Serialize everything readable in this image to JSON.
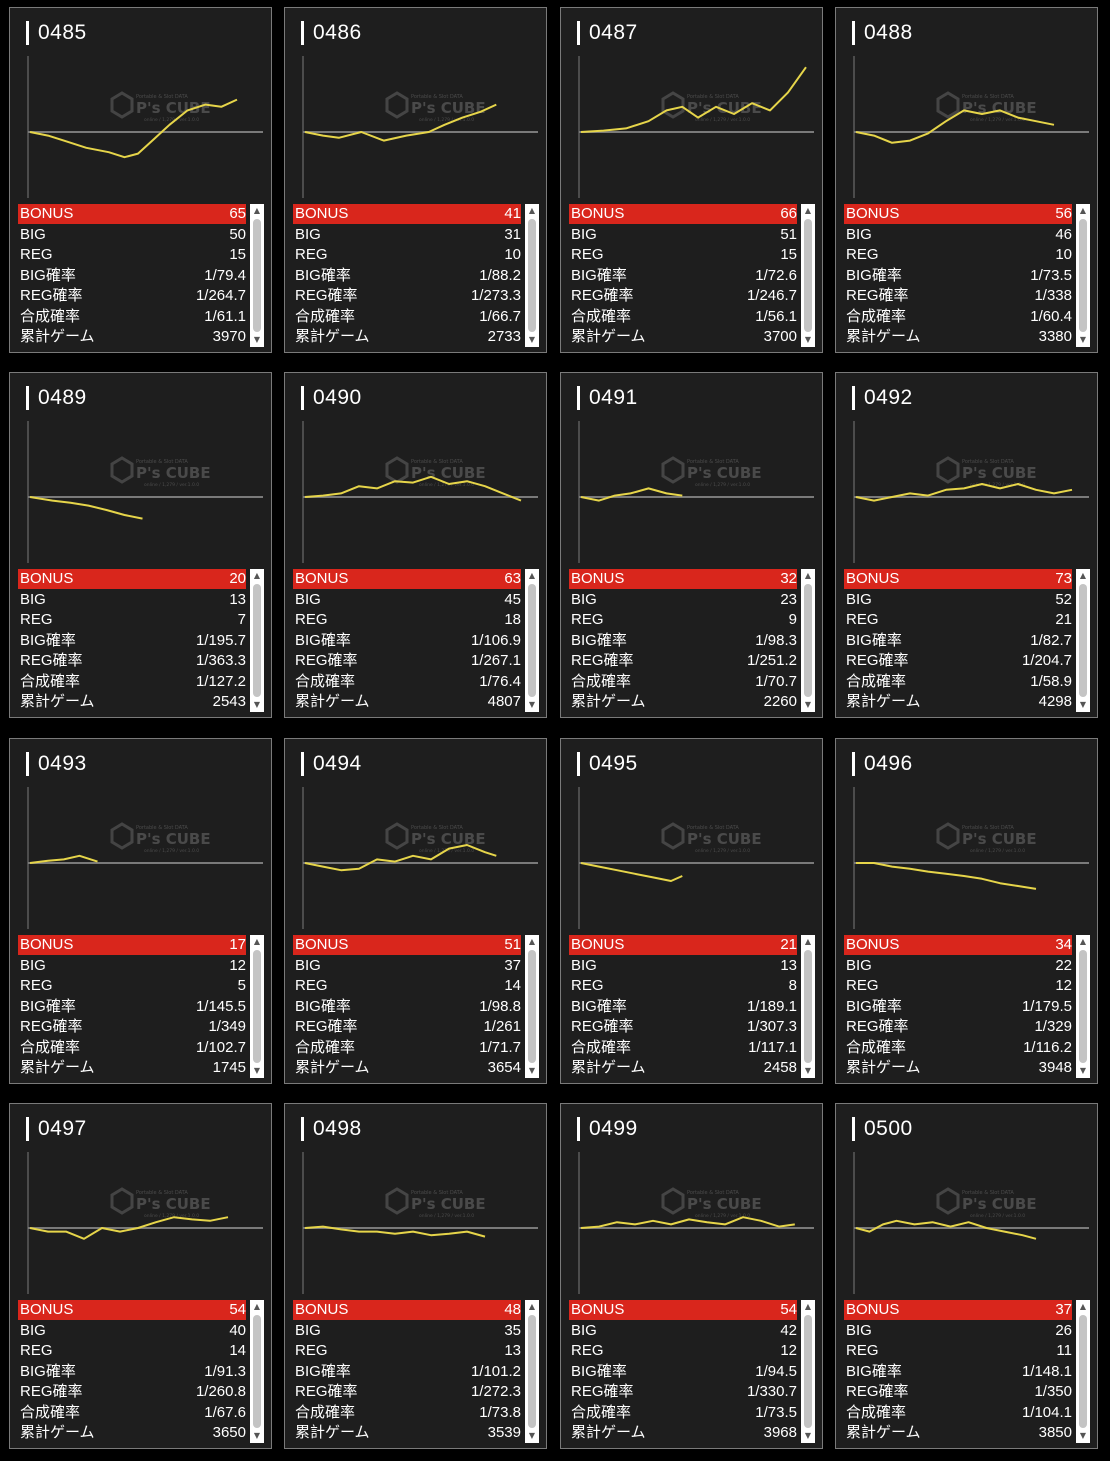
{
  "colors": {
    "bonus_bar": "#d9261c",
    "graph_line": "#e6d54a",
    "card_bg": "#1e1e1e",
    "card_border": "#7a7a7a",
    "baseline": "#7a7a7a"
  },
  "watermark": {
    "line1": "Portable & Slot DATA",
    "line2": "P's CUBE",
    "line3": "online / 1,279 / ver.1.0.0"
  },
  "icons": {
    "scroll_up": "▲",
    "scroll_down": "▼"
  },
  "labels": {
    "bonus": "BONUS",
    "big": "BIG",
    "reg": "REG",
    "big_rate": "BIG確率",
    "reg_rate": "REG確率",
    "total_rate": "合成確率",
    "games": "累計ゲーム"
  },
  "machines": [
    {
      "id": "0485",
      "bonus": "65",
      "big": "50",
      "reg": "15",
      "big_rate": "1/79.4",
      "reg_rate": "1/264.7",
      "total_rate": "1/61.1",
      "games": "3970",
      "graph": [
        [
          0,
          0
        ],
        [
          0.08,
          -0.05
        ],
        [
          0.15,
          -0.12
        ],
        [
          0.25,
          -0.22
        ],
        [
          0.35,
          -0.28
        ],
        [
          0.42,
          -0.35
        ],
        [
          0.48,
          -0.3
        ],
        [
          0.55,
          -0.1
        ],
        [
          0.62,
          0.1
        ],
        [
          0.7,
          0.3
        ],
        [
          0.78,
          0.38
        ],
        [
          0.85,
          0.35
        ],
        [
          0.92,
          0.45
        ]
      ]
    },
    {
      "id": "0486",
      "bonus": "41",
      "big": "31",
      "reg": "10",
      "big_rate": "1/88.2",
      "reg_rate": "1/273.3",
      "total_rate": "1/66.7",
      "games": "2733",
      "graph": [
        [
          0,
          0
        ],
        [
          0.08,
          -0.05
        ],
        [
          0.15,
          -0.08
        ],
        [
          0.25,
          0
        ],
        [
          0.35,
          -0.12
        ],
        [
          0.45,
          -0.05
        ],
        [
          0.55,
          0
        ],
        [
          0.62,
          0.1
        ],
        [
          0.7,
          0.2
        ],
        [
          0.78,
          0.28
        ],
        [
          0.85,
          0.38
        ]
      ]
    },
    {
      "id": "0487",
      "bonus": "66",
      "big": "51",
      "reg": "15",
      "big_rate": "1/72.6",
      "reg_rate": "1/246.7",
      "total_rate": "1/56.1",
      "games": "3700",
      "graph": [
        [
          0,
          0
        ],
        [
          0.1,
          0.02
        ],
        [
          0.2,
          0.05
        ],
        [
          0.3,
          0.15
        ],
        [
          0.38,
          0.3
        ],
        [
          0.45,
          0.35
        ],
        [
          0.52,
          0.2
        ],
        [
          0.6,
          0.35
        ],
        [
          0.68,
          0.25
        ],
        [
          0.76,
          0.4
        ],
        [
          0.84,
          0.3
        ],
        [
          0.92,
          0.55
        ],
        [
          1.0,
          0.9
        ]
      ]
    },
    {
      "id": "0488",
      "bonus": "56",
      "big": "46",
      "reg": "10",
      "big_rate": "1/73.5",
      "reg_rate": "1/338",
      "total_rate": "1/60.4",
      "games": "3380",
      "graph": [
        [
          0,
          0
        ],
        [
          0.08,
          -0.05
        ],
        [
          0.16,
          -0.15
        ],
        [
          0.24,
          -0.12
        ],
        [
          0.32,
          -0.02
        ],
        [
          0.4,
          0.15
        ],
        [
          0.48,
          0.3
        ],
        [
          0.56,
          0.25
        ],
        [
          0.64,
          0.3
        ],
        [
          0.72,
          0.2
        ],
        [
          0.8,
          0.15
        ],
        [
          0.88,
          0.1
        ]
      ]
    },
    {
      "id": "0489",
      "bonus": "20",
      "big": "13",
      "reg": "7",
      "big_rate": "1/195.7",
      "reg_rate": "1/363.3",
      "total_rate": "1/127.2",
      "games": "2543",
      "graph": [
        [
          0,
          0
        ],
        [
          0.1,
          -0.05
        ],
        [
          0.18,
          -0.08
        ],
        [
          0.26,
          -0.12
        ],
        [
          0.34,
          -0.18
        ],
        [
          0.42,
          -0.25
        ],
        [
          0.5,
          -0.3
        ]
      ]
    },
    {
      "id": "0490",
      "bonus": "63",
      "big": "45",
      "reg": "18",
      "big_rate": "1/106.9",
      "reg_rate": "1/267.1",
      "total_rate": "1/76.4",
      "games": "4807",
      "graph": [
        [
          0,
          0
        ],
        [
          0.08,
          0.02
        ],
        [
          0.16,
          0.05
        ],
        [
          0.24,
          0.15
        ],
        [
          0.32,
          0.12
        ],
        [
          0.4,
          0.22
        ],
        [
          0.48,
          0.2
        ],
        [
          0.56,
          0.28
        ],
        [
          0.64,
          0.18
        ],
        [
          0.72,
          0.22
        ],
        [
          0.8,
          0.15
        ],
        [
          0.88,
          0.05
        ],
        [
          0.96,
          -0.05
        ]
      ]
    },
    {
      "id": "0491",
      "bonus": "32",
      "big": "23",
      "reg": "9",
      "big_rate": "1/98.3",
      "reg_rate": "1/251.2",
      "total_rate": "1/70.7",
      "games": "2260",
      "graph": [
        [
          0,
          0
        ],
        [
          0.08,
          -0.05
        ],
        [
          0.15,
          0.02
        ],
        [
          0.22,
          0.05
        ],
        [
          0.3,
          0.12
        ],
        [
          0.38,
          0.05
        ],
        [
          0.45,
          0.02
        ]
      ]
    },
    {
      "id": "0492",
      "bonus": "73",
      "big": "52",
      "reg": "21",
      "big_rate": "1/82.7",
      "reg_rate": "1/204.7",
      "total_rate": "1/58.9",
      "games": "4298",
      "graph": [
        [
          0,
          0
        ],
        [
          0.08,
          -0.05
        ],
        [
          0.16,
          0
        ],
        [
          0.24,
          0.05
        ],
        [
          0.32,
          0.02
        ],
        [
          0.4,
          0.1
        ],
        [
          0.48,
          0.12
        ],
        [
          0.56,
          0.18
        ],
        [
          0.64,
          0.12
        ],
        [
          0.72,
          0.18
        ],
        [
          0.8,
          0.1
        ],
        [
          0.88,
          0.05
        ],
        [
          0.96,
          0.1
        ]
      ]
    },
    {
      "id": "0493",
      "bonus": "17",
      "big": "12",
      "reg": "5",
      "big_rate": "1/145.5",
      "reg_rate": "1/349",
      "total_rate": "1/102.7",
      "games": "1745",
      "graph": [
        [
          0,
          0
        ],
        [
          0.08,
          0.03
        ],
        [
          0.15,
          0.05
        ],
        [
          0.22,
          0.1
        ],
        [
          0.3,
          0.02
        ]
      ]
    },
    {
      "id": "0494",
      "bonus": "51",
      "big": "37",
      "reg": "14",
      "big_rate": "1/98.8",
      "reg_rate": "1/261",
      "total_rate": "1/71.7",
      "games": "3654",
      "graph": [
        [
          0,
          0
        ],
        [
          0.08,
          -0.05
        ],
        [
          0.16,
          -0.1
        ],
        [
          0.24,
          -0.08
        ],
        [
          0.32,
          0.05
        ],
        [
          0.4,
          0.02
        ],
        [
          0.48,
          0.1
        ],
        [
          0.56,
          0.05
        ],
        [
          0.64,
          0.2
        ],
        [
          0.72,
          0.25
        ],
        [
          0.8,
          0.15
        ],
        [
          0.85,
          0.1
        ]
      ]
    },
    {
      "id": "0495",
      "bonus": "21",
      "big": "13",
      "reg": "8",
      "big_rate": "1/189.1",
      "reg_rate": "1/307.3",
      "total_rate": "1/117.1",
      "games": "2458",
      "graph": [
        [
          0,
          0
        ],
        [
          0.08,
          -0.05
        ],
        [
          0.16,
          -0.1
        ],
        [
          0.24,
          -0.15
        ],
        [
          0.32,
          -0.2
        ],
        [
          0.4,
          -0.25
        ],
        [
          0.45,
          -0.18
        ]
      ]
    },
    {
      "id": "0496",
      "bonus": "34",
      "big": "22",
      "reg": "12",
      "big_rate": "1/179.5",
      "reg_rate": "1/329",
      "total_rate": "1/116.2",
      "games": "3948",
      "graph": [
        [
          0,
          0
        ],
        [
          0.08,
          0
        ],
        [
          0.16,
          -0.05
        ],
        [
          0.24,
          -0.08
        ],
        [
          0.32,
          -0.12
        ],
        [
          0.4,
          -0.15
        ],
        [
          0.48,
          -0.18
        ],
        [
          0.56,
          -0.22
        ],
        [
          0.64,
          -0.28
        ],
        [
          0.72,
          -0.32
        ],
        [
          0.8,
          -0.36
        ]
      ]
    },
    {
      "id": "0497",
      "bonus": "54",
      "big": "40",
      "reg": "14",
      "big_rate": "1/91.3",
      "reg_rate": "1/260.8",
      "total_rate": "1/67.6",
      "games": "3650",
      "graph": [
        [
          0,
          0
        ],
        [
          0.08,
          -0.05
        ],
        [
          0.16,
          -0.05
        ],
        [
          0.24,
          -0.15
        ],
        [
          0.32,
          0
        ],
        [
          0.4,
          -0.05
        ],
        [
          0.48,
          0
        ],
        [
          0.56,
          0.08
        ],
        [
          0.64,
          0.15
        ],
        [
          0.72,
          0.12
        ],
        [
          0.8,
          0.1
        ],
        [
          0.88,
          0.15
        ]
      ]
    },
    {
      "id": "0498",
      "bonus": "48",
      "big": "35",
      "reg": "13",
      "big_rate": "1/101.2",
      "reg_rate": "1/272.3",
      "total_rate": "1/73.8",
      "games": "3539",
      "graph": [
        [
          0,
          0
        ],
        [
          0.08,
          0.02
        ],
        [
          0.16,
          -0.02
        ],
        [
          0.24,
          -0.05
        ],
        [
          0.32,
          -0.05
        ],
        [
          0.4,
          -0.08
        ],
        [
          0.48,
          -0.05
        ],
        [
          0.56,
          -0.1
        ],
        [
          0.64,
          -0.08
        ],
        [
          0.72,
          -0.05
        ],
        [
          0.8,
          -0.12
        ]
      ]
    },
    {
      "id": "0499",
      "bonus": "54",
      "big": "42",
      "reg": "12",
      "big_rate": "1/94.5",
      "reg_rate": "1/330.7",
      "total_rate": "1/73.5",
      "games": "3968",
      "graph": [
        [
          0,
          0
        ],
        [
          0.08,
          0.02
        ],
        [
          0.16,
          0.08
        ],
        [
          0.24,
          0.05
        ],
        [
          0.32,
          0.1
        ],
        [
          0.4,
          0.05
        ],
        [
          0.48,
          0.12
        ],
        [
          0.56,
          0.08
        ],
        [
          0.64,
          0.05
        ],
        [
          0.72,
          0.15
        ],
        [
          0.8,
          0.1
        ],
        [
          0.88,
          0.02
        ],
        [
          0.95,
          0.05
        ]
      ]
    },
    {
      "id": "0500",
      "bonus": "37",
      "big": "26",
      "reg": "11",
      "big_rate": "1/148.1",
      "reg_rate": "1/350",
      "total_rate": "1/104.1",
      "games": "3850",
      "graph": [
        [
          0,
          0
        ],
        [
          0.06,
          -0.05
        ],
        [
          0.12,
          0.05
        ],
        [
          0.18,
          0.1
        ],
        [
          0.26,
          0.05
        ],
        [
          0.34,
          0.08
        ],
        [
          0.42,
          0.02
        ],
        [
          0.5,
          0.08
        ],
        [
          0.58,
          0
        ],
        [
          0.66,
          -0.05
        ],
        [
          0.74,
          -0.1
        ],
        [
          0.8,
          -0.15
        ]
      ]
    }
  ]
}
